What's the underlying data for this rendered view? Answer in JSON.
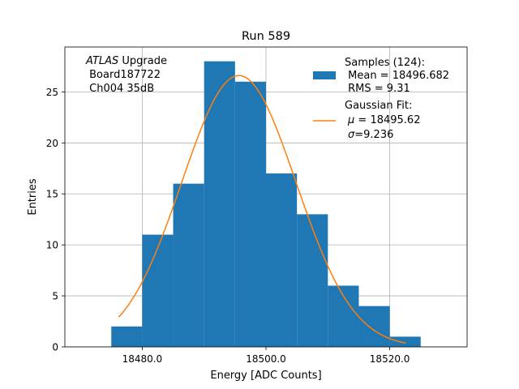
{
  "chart_data": {
    "type": "bar",
    "title": "Run 589",
    "xlabel": "Energy [ADC Counts]",
    "ylabel": "Entries",
    "xlim": [
      18467.5,
      18532.5
    ],
    "ylim": [
      0,
      29.4
    ],
    "xticks": [
      18480,
      18500,
      18520
    ],
    "xtick_labels": [
      "18480.0",
      "18500.0",
      "18520.0"
    ],
    "yticks": [
      0,
      5,
      10,
      15,
      20,
      25
    ],
    "grid": true,
    "bins": {
      "edges": [
        18475,
        18480,
        18485,
        18490,
        18495,
        18500,
        18505,
        18510,
        18515,
        18520,
        18525
      ],
      "counts": [
        2,
        11,
        16,
        28,
        26,
        17,
        13,
        6,
        4,
        1
      ],
      "color": "#1f77b4"
    },
    "fit": {
      "mu": 18495.62,
      "sigma": 9.236,
      "amplitude": 26.6,
      "x_range": [
        18476.2,
        18522.6
      ],
      "color": "#ff7f0e"
    },
    "annotation": {
      "line1_italic": "ATLAS",
      "line1_rest": " Upgrade",
      "line2": " Board187722",
      "line3": " Ch004 35dB"
    },
    "legend": {
      "placement": "top-right",
      "samples_line1": "Samples (124):",
      "samples_line2": " Mean = 18496.682",
      "samples_line3": " RMS = 9.31",
      "fit_line1": "Gaussian Fit:",
      "fit_mu_symbol": "μ",
      "fit_mu_rest": " = 18495.62",
      "fit_sigma_symbol": "σ",
      "fit_sigma_rest": "=9.236"
    }
  }
}
